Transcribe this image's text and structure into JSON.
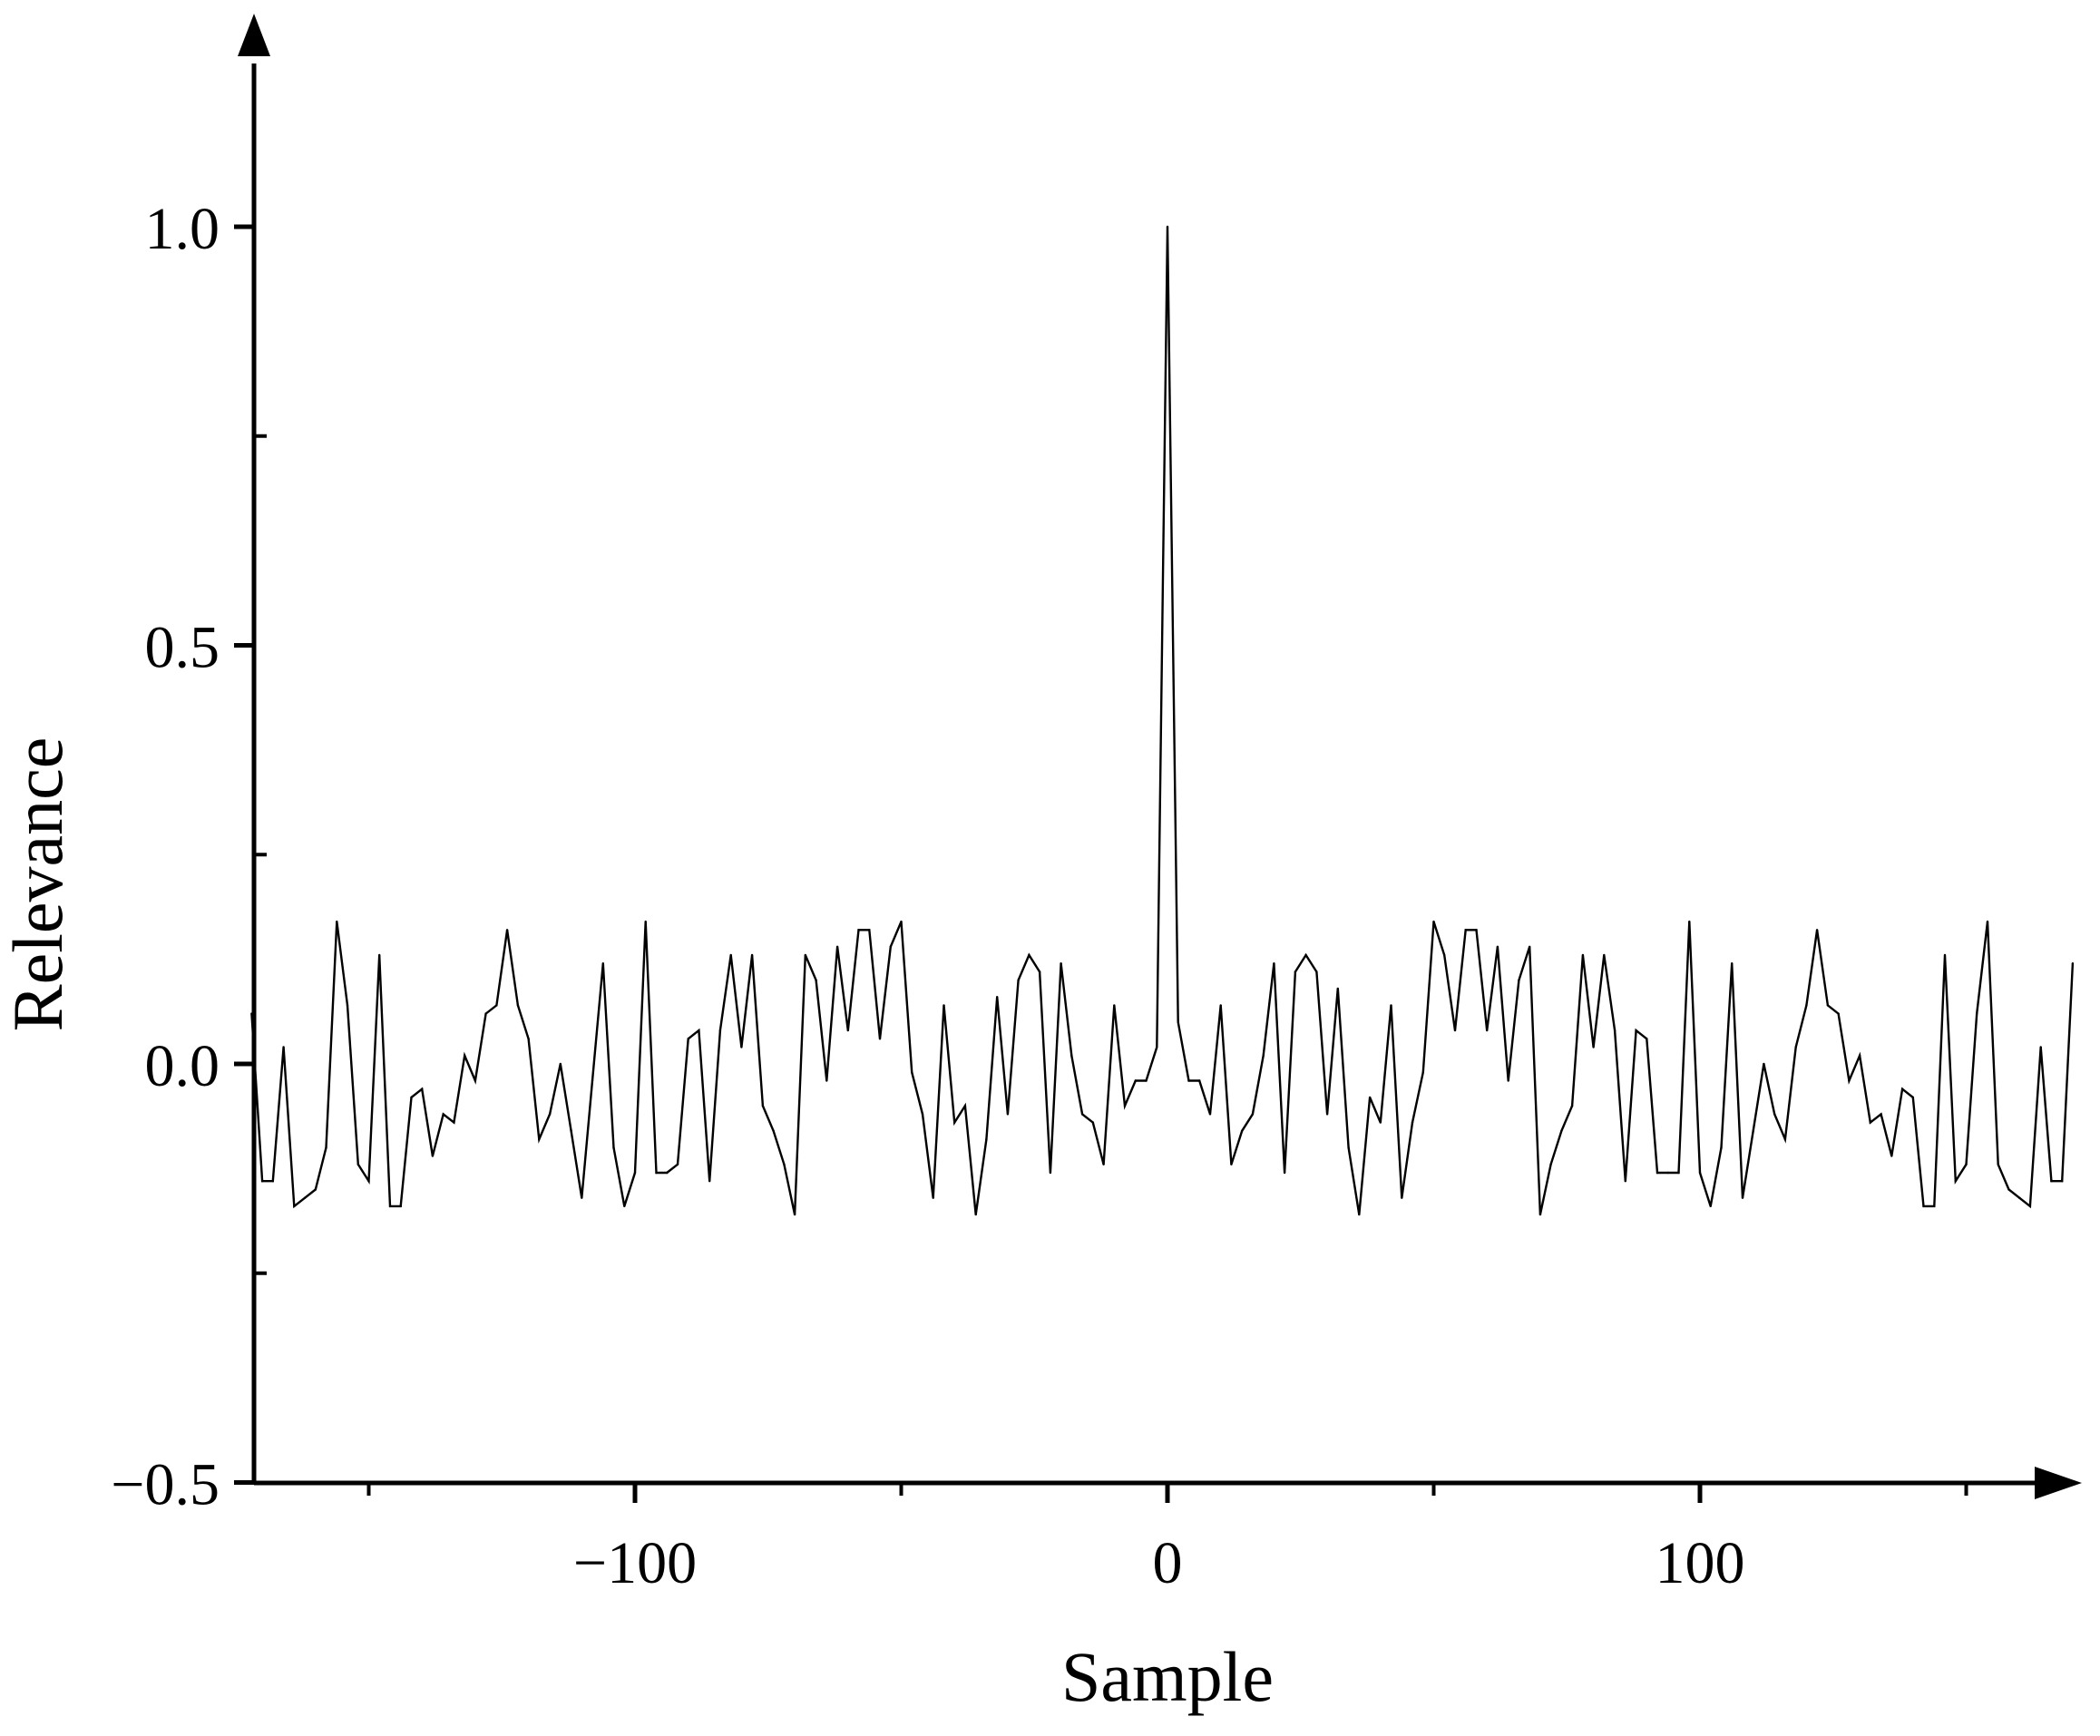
{
  "chart_data": {
    "type": "line",
    "title": "",
    "xlabel": "Sample",
    "ylabel": "Relevance",
    "xlim": [
      -172,
      172
    ],
    "ylim": [
      -0.5,
      1.25
    ],
    "x_ticks": [
      {
        "value": -100,
        "label": "−100"
      },
      {
        "value": 0,
        "label": "0"
      },
      {
        "value": 100,
        "label": "100"
      }
    ],
    "x_minor_ticks": [
      -150,
      -50,
      50,
      150
    ],
    "y_ticks": [
      {
        "value": -0.5,
        "label": "−0.5"
      },
      {
        "value": 0.0,
        "label": "0.0"
      },
      {
        "value": 0.5,
        "label": "0.5"
      },
      {
        "value": 1.0,
        "label": "1.0"
      }
    ],
    "y_minor_ticks": [
      -0.25,
      0.25,
      0.75
    ],
    "grid": false,
    "line_color": "#000000",
    "series": [
      {
        "x": [
          -172,
          -170,
          -168,
          -166,
          -164,
          -162,
          -160,
          -158,
          -156,
          -154,
          -152,
          -150,
          -148,
          -146,
          -144,
          -142,
          -140,
          -138,
          -136,
          -134,
          -132,
          -130,
          -128,
          -126,
          -124,
          -122,
          -120,
          -118,
          -116,
          -114,
          -112,
          -110,
          -108,
          -106,
          -104,
          -102,
          -100,
          -98,
          -96,
          -94,
          -92,
          -90,
          -88,
          -86,
          -84,
          -82,
          -80,
          -78,
          -76,
          -74,
          -72,
          -70,
          -68,
          -66,
          -64,
          -62,
          -60,
          -58,
          -56,
          -54,
          -52,
          -50,
          -48,
          -46,
          -44,
          -42,
          -40,
          -38,
          -36,
          -34,
          -32,
          -30,
          -28,
          -26,
          -24,
          -22,
          -20,
          -18,
          -16,
          -14,
          -12,
          -10,
          -8,
          -6,
          -4,
          -2,
          0,
          2,
          4,
          6,
          8,
          10,
          12,
          14,
          16,
          18,
          20,
          22,
          24,
          26,
          28,
          30,
          32,
          34,
          36,
          38,
          40,
          42,
          44,
          46,
          48,
          50,
          52,
          54,
          56,
          58,
          60,
          62,
          64,
          66,
          68,
          70,
          72,
          74,
          76,
          78,
          80,
          82,
          84,
          86,
          88,
          90,
          92,
          94,
          96,
          98,
          100,
          102,
          104,
          106,
          108,
          110,
          112,
          114,
          116,
          118,
          120,
          122,
          124,
          126,
          128,
          130,
          132,
          134,
          136,
          138,
          140,
          142,
          144,
          146,
          148,
          150,
          152,
          154,
          156,
          158,
          160,
          162,
          164,
          166,
          168,
          170
        ],
        "y": [
          0.06,
          -0.14,
          -0.14,
          0.02,
          -0.17,
          -0.16,
          -0.15,
          -0.1,
          0.17,
          0.07,
          -0.12,
          -0.14,
          0.13,
          -0.17,
          -0.17,
          -0.04,
          -0.03,
          -0.11,
          -0.06,
          -0.07,
          0.01,
          -0.02,
          0.06,
          0.07,
          0.16,
          0.07,
          0.03,
          -0.09,
          -0.06,
          0.0,
          -0.08,
          -0.16,
          -0.02,
          0.12,
          -0.1,
          -0.17,
          -0.13,
          0.17,
          -0.13,
          -0.13,
          -0.12,
          0.03,
          0.04,
          -0.14,
          0.04,
          0.13,
          0.02,
          0.13,
          -0.05,
          -0.08,
          -0.12,
          -0.18,
          0.13,
          0.1,
          -0.02,
          0.14,
          0.04,
          0.16,
          0.16,
          0.03,
          0.14,
          0.17,
          -0.01,
          -0.06,
          -0.16,
          0.07,
          -0.07,
          -0.05,
          -0.18,
          -0.09,
          0.08,
          -0.06,
          0.1,
          0.13,
          0.11,
          -0.13,
          0.12,
          0.01,
          -0.06,
          -0.07,
          -0.12,
          0.07,
          -0.05,
          -0.02,
          -0.02,
          0.02,
          1.0,
          0.05,
          -0.02,
          -0.02,
          -0.06,
          0.07,
          -0.12,
          -0.08,
          -0.06,
          0.01,
          0.12,
          -0.13,
          0.11,
          0.13,
          0.11,
          -0.06,
          0.09,
          -0.1,
          -0.18,
          -0.04,
          -0.07,
          0.07,
          -0.16,
          -0.07,
          -0.01,
          0.17,
          0.13,
          0.04,
          0.16,
          0.16,
          0.04,
          0.14,
          -0.02,
          0.1,
          0.14,
          -0.18,
          -0.12,
          -0.08,
          -0.05,
          0.13,
          0.02,
          0.13,
          0.04,
          -0.14,
          0.04,
          0.03,
          -0.13,
          -0.13,
          -0.13,
          0.17,
          -0.13,
          -0.17,
          -0.1,
          0.12,
          -0.16,
          -0.08,
          0.0,
          -0.06,
          -0.09,
          0.02,
          0.07,
          0.16,
          0.07,
          0.06,
          -0.02,
          0.01,
          -0.07,
          -0.06,
          -0.11,
          -0.03,
          -0.04,
          -0.17,
          -0.17,
          0.13,
          -0.14,
          -0.12,
          0.06,
          0.17,
          -0.12,
          -0.15,
          -0.16,
          -0.17,
          0.02,
          -0.14,
          -0.14,
          0.12
        ]
      }
    ]
  }
}
